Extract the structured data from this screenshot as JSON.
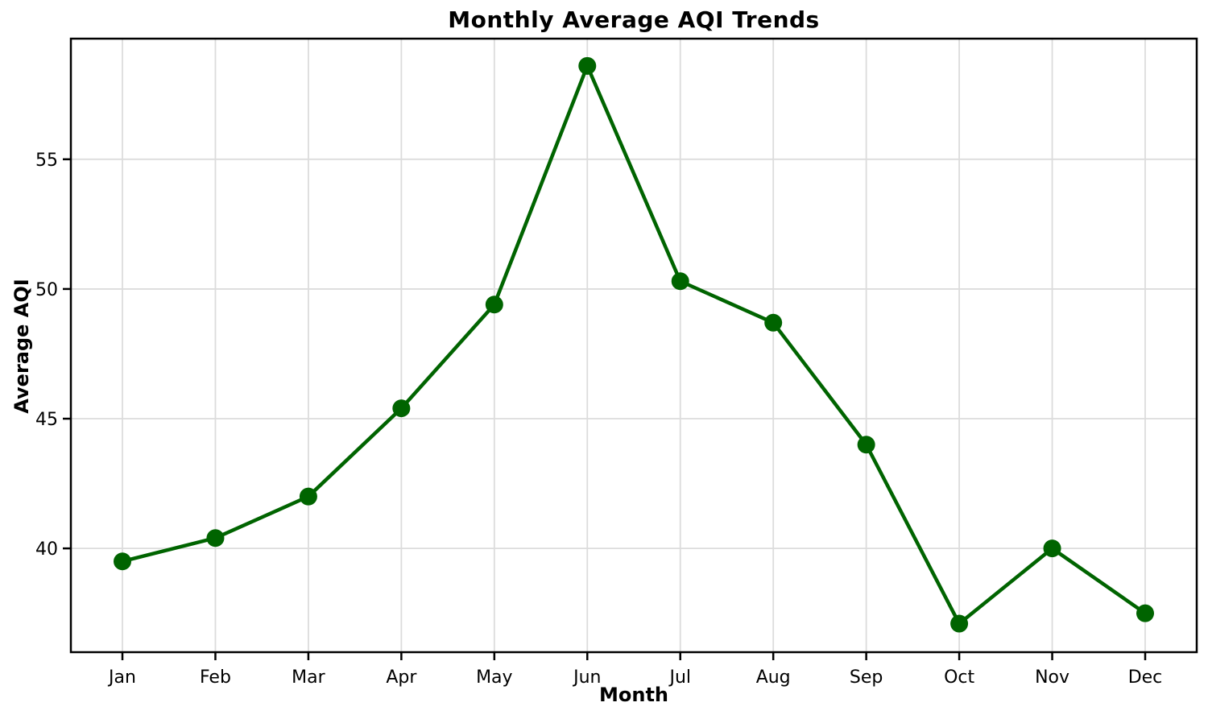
{
  "chart_data": {
    "type": "line",
    "title": "Monthly Average AQI Trends",
    "xlabel": "Month",
    "ylabel": "Average AQI",
    "categories": [
      "Jan",
      "Feb",
      "Mar",
      "Apr",
      "May",
      "Jun",
      "Jul",
      "Aug",
      "Sep",
      "Oct",
      "Nov",
      "Dec"
    ],
    "series": [
      {
        "name": "Monthly Average AQI",
        "values": [
          39.5,
          40.4,
          42.0,
          45.4,
          49.4,
          58.6,
          50.3,
          48.7,
          44.0,
          37.1,
          40.0,
          37.5
        ]
      }
    ],
    "yticks": [
      40,
      45,
      50,
      55
    ],
    "ylim": [
      36.0,
      59.65
    ],
    "grid": true,
    "legend": "none",
    "marker": "circle",
    "line_color": "#006400",
    "grid_color": "#dcdcdc",
    "spine_color": "#000000",
    "background_color": "#ffffff"
  }
}
